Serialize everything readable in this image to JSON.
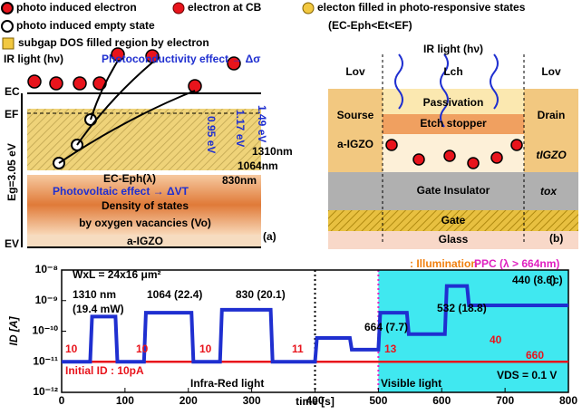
{
  "legend": {
    "items": [
      "photo induced electron",
      "electron at CB",
      "electon filled in photo-responsive states",
      "photo induced empty state",
      "subgap DOS filled region by electron"
    ],
    "condition": "(EC-Eph<Et<EF)"
  },
  "panel_a": {
    "ir": "IR  light (hν)",
    "pc": "Photoconductivity effect → Δσ",
    "pv": "Photovoltaic effect → ΔVT",
    "ec": "EC",
    "ef": "EF",
    "ev": "EV",
    "eg": "Eg=3.05 eV",
    "ecph": "EC-Eph(λ)",
    "w1": "1310nm",
    "w2": "1064nm",
    "w3": "830nm",
    "e1": "0.95 eV",
    "e2": "1.17 eV",
    "e3": "1.49 eV",
    "dos1": "Density of states",
    "dos2": "by oxygen vacancies (Vo)",
    "layer": "a-IGZO",
    "tag": "(a)"
  },
  "panel_b": {
    "ir": "IR light (hν)",
    "lov1": "Lov",
    "lch": "Lch",
    "lov2": "Lov",
    "passivation": "Passivation",
    "etch": "Etch stopper",
    "source": "Sourse",
    "drain": "Drain",
    "igzo": "a-IGZO",
    "tigzo": "tIGZO",
    "gi": "Gate Insulator",
    "tox": "tox",
    "gate": "Gate",
    "glass": "Glass",
    "tag": "(b)"
  },
  "chart_data": {
    "type": "line",
    "x_label": "time [s]",
    "y_label": "ID [A]",
    "log_y": true,
    "x": [
      0,
      45,
      48,
      85,
      88,
      130,
      133,
      205,
      208,
      250,
      253,
      330,
      333,
      400,
      403,
      455,
      458,
      500,
      503,
      545,
      548,
      605,
      608,
      640,
      643,
      800
    ],
    "series": [
      {
        "color": "#1f2fd0",
        "values": [
          1e-11,
          1e-11,
          3e-10,
          3e-10,
          1e-11,
          1e-11,
          4e-10,
          4e-10,
          1e-11,
          1e-11,
          5e-10,
          5e-10,
          1e-11,
          1e-11,
          6e-11,
          6e-11,
          2.5e-11,
          2.5e-11,
          4e-10,
          4e-10,
          8e-11,
          8e-11,
          3e-09,
          3e-09,
          7e-10,
          7e-10
        ]
      },
      {
        "color": "#e8141c",
        "values": [
          1e-11,
          1e-11,
          1e-11,
          1e-11,
          1e-11,
          1e-11,
          1e-11,
          1e-11,
          1e-11,
          1e-11,
          1e-11,
          1e-11,
          1e-11,
          1e-11,
          1e-11,
          1e-11,
          1e-11,
          1e-11,
          1e-11,
          1e-11,
          1e-11,
          1e-11,
          1e-11,
          1e-11,
          1e-11,
          1e-11
        ]
      }
    ],
    "xlim": [
      0,
      800
    ],
    "xticks": [
      0,
      100,
      200,
      300,
      400,
      500,
      600,
      700,
      800
    ],
    "ylim": [
      1e-12,
      1e-08
    ],
    "yticks": [
      {
        "value": 1e-12,
        "label": "10⁻¹²"
      },
      {
        "value": 1e-11,
        "label": "10⁻¹¹"
      },
      {
        "value": 1e-10,
        "label": "10⁻¹⁰"
      },
      {
        "value": 1e-09,
        "label": "10⁻⁹"
      },
      {
        "value": 1e-08,
        "label": "10⁻⁸"
      }
    ],
    "ppc_region": [
      500,
      800
    ],
    "dividers": [
      400,
      500
    ],
    "annotations": [
      "WxL = 24x16 μm²",
      ": Illumination",
      "PPC (λ > 664nm)",
      "(c)",
      "1310 nm",
      "(19.4 mW)",
      "1064 (22.4)",
      "830 (20.1)",
      "664 (7.7)",
      "532 (18.8)",
      "440 (8.6)",
      "10",
      "10",
      "10",
      "11",
      "13",
      "40",
      "660",
      "VDS = 0.1 V",
      "Initial ID : 10pA",
      "Infra-Red light",
      "Visible light"
    ]
  }
}
